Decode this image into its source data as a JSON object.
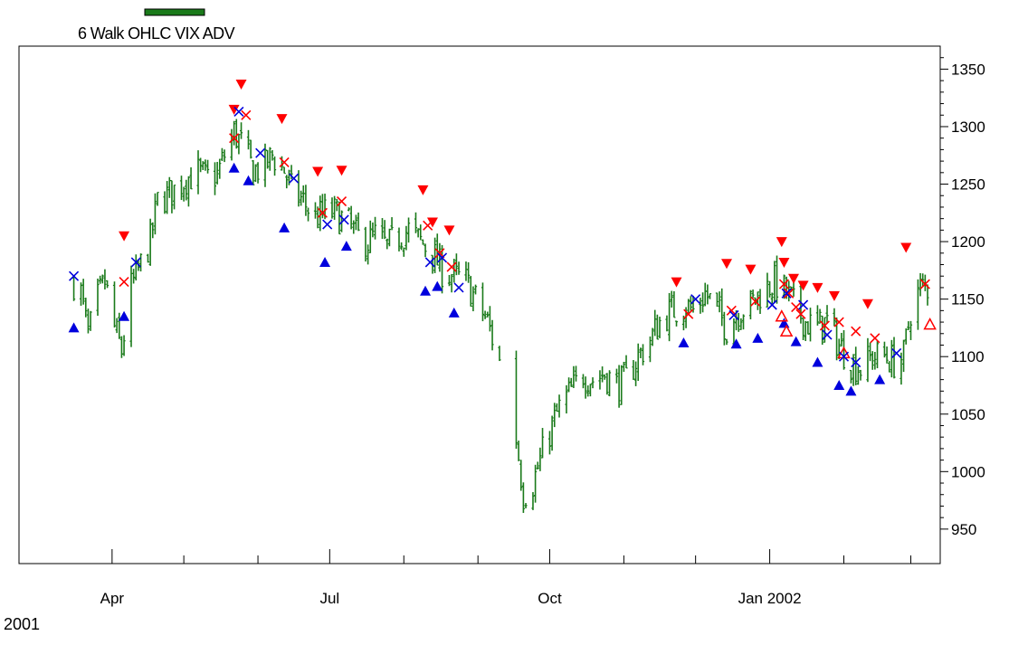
{
  "chart_data": {
    "type": "ohlc",
    "legend": {
      "label": "6 Walk OHLC VIX ADV",
      "color": "#1a7a1a",
      "placement": "top-left"
    },
    "y_axis": {
      "side": "right",
      "range": [
        920,
        1370
      ],
      "ticks": [
        950,
        1000,
        1050,
        1100,
        1150,
        1200,
        1250,
        1300,
        1350
      ]
    },
    "x_axis": {
      "range": [
        "2001-03-12",
        "2002-03-08"
      ],
      "labels": [
        {
          "date": "2001-04-01",
          "text": "Apr"
        },
        {
          "date": "2001-07-01",
          "text": "Jul"
        },
        {
          "date": "2001-10-01",
          "text": "Oct"
        },
        {
          "date": "2002-01-01",
          "text": "Jan 2002"
        }
      ],
      "month_ticks": [
        "2001-04-01",
        "2001-05-01",
        "2001-06-01",
        "2001-07-01",
        "2001-08-01",
        "2001-09-01",
        "2001-10-01",
        "2001-11-01",
        "2001-12-01",
        "2002-01-01",
        "2002-02-01",
        "2002-03-01"
      ],
      "year_label": "2001"
    },
    "grid": false,
    "colors": {
      "price": "#1a7a1a",
      "sell_signal": "#ff0000",
      "buy_signal": "#0000dd",
      "axis": "#000000"
    },
    "price_path": [
      [
        "2001-03-16",
        1165
      ],
      [
        "2001-03-19",
        1155
      ],
      [
        "2001-03-22",
        1118
      ],
      [
        "2001-03-26",
        1150
      ],
      [
        "2001-03-29",
        1165
      ],
      [
        "2001-04-02",
        1125
      ],
      [
        "2001-04-05",
        1105
      ],
      [
        "2001-04-09",
        1160
      ],
      [
        "2001-04-12",
        1175
      ],
      [
        "2001-04-17",
        1200
      ],
      [
        "2001-04-20",
        1235
      ],
      [
        "2001-04-24",
        1240
      ],
      [
        "2001-04-27",
        1245
      ],
      [
        "2001-05-02",
        1255
      ],
      [
        "2001-05-07",
        1260
      ],
      [
        "2001-05-10",
        1255
      ],
      [
        "2001-05-15",
        1258
      ],
      [
        "2001-05-18",
        1275
      ],
      [
        "2001-05-22",
        1295
      ],
      [
        "2001-05-25",
        1285
      ],
      [
        "2001-05-30",
        1262
      ],
      [
        "2001-06-04",
        1265
      ],
      [
        "2001-06-07",
        1275
      ],
      [
        "2001-06-12",
        1262
      ],
      [
        "2001-06-15",
        1245
      ],
      [
        "2001-06-20",
        1235
      ],
      [
        "2001-06-25",
        1220
      ],
      [
        "2001-06-29",
        1225
      ],
      [
        "2001-07-03",
        1225
      ],
      [
        "2001-07-09",
        1215
      ],
      [
        "2001-07-12",
        1205
      ],
      [
        "2001-07-17",
        1200
      ],
      [
        "2001-07-20",
        1205
      ],
      [
        "2001-07-25",
        1195
      ],
      [
        "2001-07-30",
        1205
      ],
      [
        "2001-08-03",
        1210
      ],
      [
        "2001-08-08",
        1200
      ],
      [
        "2001-08-13",
        1190
      ],
      [
        "2001-08-17",
        1175
      ],
      [
        "2001-08-22",
        1170
      ],
      [
        "2001-08-27",
        1165
      ],
      [
        "2001-08-31",
        1150
      ],
      [
        "2001-09-05",
        1130
      ],
      [
        "2001-09-10",
        1095
      ],
      [
        "2001-09-17",
        1030
      ],
      [
        "2001-09-20",
        980
      ],
      [
        "2001-09-24",
        990
      ],
      [
        "2001-09-27",
        1010
      ],
      [
        "2001-10-02",
        1040
      ],
      [
        "2001-10-05",
        1055
      ],
      [
        "2001-10-10",
        1070
      ],
      [
        "2001-10-15",
        1085
      ],
      [
        "2001-10-19",
        1080
      ],
      [
        "2001-10-24",
        1085
      ],
      [
        "2001-10-29",
        1075
      ],
      [
        "2001-11-02",
        1080
      ],
      [
        "2001-11-07",
        1100
      ],
      [
        "2001-11-12",
        1115
      ],
      [
        "2001-11-16",
        1130
      ],
      [
        "2001-11-21",
        1140
      ],
      [
        "2001-11-27",
        1145
      ],
      [
        "2001-11-30",
        1140
      ],
      [
        "2001-12-05",
        1155
      ],
      [
        "2001-12-10",
        1140
      ],
      [
        "2001-12-14",
        1125
      ],
      [
        "2001-12-19",
        1140
      ],
      [
        "2001-12-24",
        1145
      ],
      [
        "2001-12-28",
        1155
      ],
      [
        "2002-01-03",
        1165
      ],
      [
        "2002-01-08",
        1155
      ],
      [
        "2002-01-11",
        1145
      ],
      [
        "2002-01-16",
        1130
      ],
      [
        "2002-01-21",
        1125
      ],
      [
        "2002-01-25",
        1130
      ],
      [
        "2002-01-30",
        1110
      ],
      [
        "2002-02-04",
        1095
      ],
      [
        "2002-02-08",
        1090
      ],
      [
        "2002-02-13",
        1100
      ],
      [
        "2002-02-19",
        1100
      ],
      [
        "2002-02-22",
        1095
      ],
      [
        "2002-02-26",
        1100
      ],
      [
        "2002-03-01",
        1140
      ],
      [
        "2002-03-05",
        1160
      ],
      [
        "2002-03-08",
        1160
      ]
    ],
    "sell_signals": [
      [
        "2001-04-06",
        1205
      ],
      [
        "2001-05-22",
        1315
      ],
      [
        "2001-05-25",
        1337
      ],
      [
        "2001-06-11",
        1307
      ],
      [
        "2001-06-26",
        1261
      ],
      [
        "2001-07-06",
        1262
      ],
      [
        "2001-08-09",
        1245
      ],
      [
        "2001-08-13",
        1217
      ],
      [
        "2001-08-20",
        1210
      ],
      [
        "2001-11-23",
        1165
      ],
      [
        "2001-12-14",
        1181
      ],
      [
        "2001-12-24",
        1176
      ],
      [
        "2002-01-06",
        1200
      ],
      [
        "2002-01-07",
        1182
      ],
      [
        "2002-01-11",
        1168
      ],
      [
        "2002-01-15",
        1162
      ],
      [
        "2002-01-21",
        1160
      ],
      [
        "2002-01-28",
        1153
      ],
      [
        "2002-02-11",
        1146
      ],
      [
        "2002-02-27",
        1195
      ]
    ],
    "buy_signals": [
      [
        "2001-03-16",
        1125
      ],
      [
        "2001-04-06",
        1135
      ],
      [
        "2001-05-22",
        1264
      ],
      [
        "2001-05-28",
        1253
      ],
      [
        "2001-06-12",
        1212
      ],
      [
        "2001-06-29",
        1182
      ],
      [
        "2001-07-08",
        1196
      ],
      [
        "2001-08-10",
        1157
      ],
      [
        "2001-08-15",
        1161
      ],
      [
        "2001-08-22",
        1138
      ],
      [
        "2001-11-26",
        1112
      ],
      [
        "2001-12-18",
        1111
      ],
      [
        "2001-12-27",
        1116
      ],
      [
        "2002-01-07",
        1129
      ],
      [
        "2002-01-12",
        1113
      ],
      [
        "2002-01-21",
        1095
      ],
      [
        "2002-01-30",
        1075
      ],
      [
        "2002-02-04",
        1070
      ],
      [
        "2002-02-16",
        1080
      ]
    ],
    "sell_exits": [
      [
        "2001-04-06",
        1165
      ],
      [
        "2001-05-22",
        1290
      ],
      [
        "2001-05-27",
        1310
      ],
      [
        "2001-06-12",
        1269
      ],
      [
        "2001-06-28",
        1225
      ],
      [
        "2001-07-06",
        1235
      ],
      [
        "2001-08-11",
        1214
      ],
      [
        "2001-08-16",
        1190
      ],
      [
        "2001-08-21",
        1178
      ],
      [
        "2001-11-28",
        1137
      ],
      [
        "2001-12-16",
        1140
      ],
      [
        "2001-12-26",
        1148
      ],
      [
        "2002-01-07",
        1163
      ],
      [
        "2002-01-09",
        1155
      ],
      [
        "2002-01-12",
        1143
      ],
      [
        "2002-01-14",
        1137
      ],
      [
        "2002-01-24",
        1127
      ],
      [
        "2002-01-30",
        1130
      ],
      [
        "2002-02-06",
        1122
      ],
      [
        "2002-02-14",
        1116
      ],
      [
        "2002-03-07",
        1163
      ]
    ],
    "buy_exits": [
      [
        "2001-03-16",
        1170
      ],
      [
        "2001-04-11",
        1182
      ],
      [
        "2001-05-24",
        1313
      ],
      [
        "2001-06-02",
        1277
      ],
      [
        "2001-06-16",
        1255
      ],
      [
        "2001-06-30",
        1215
      ],
      [
        "2001-07-07",
        1219
      ],
      [
        "2001-08-12",
        1182
      ],
      [
        "2001-08-17",
        1186
      ],
      [
        "2001-08-24",
        1160
      ],
      [
        "2001-12-01",
        1150
      ],
      [
        "2001-12-17",
        1136
      ],
      [
        "2002-01-02",
        1145
      ],
      [
        "2002-01-08",
        1155
      ],
      [
        "2002-01-15",
        1145
      ],
      [
        "2002-01-25",
        1119
      ],
      [
        "2002-02-01",
        1100
      ],
      [
        "2002-02-06",
        1095
      ],
      [
        "2002-02-23",
        1103
      ]
    ],
    "open_sell_signals": [
      [
        "2002-01-06",
        1135
      ],
      [
        "2002-01-08",
        1122
      ],
      [
        "2002-02-01",
        1103
      ],
      [
        "2002-03-09",
        1128
      ]
    ]
  }
}
